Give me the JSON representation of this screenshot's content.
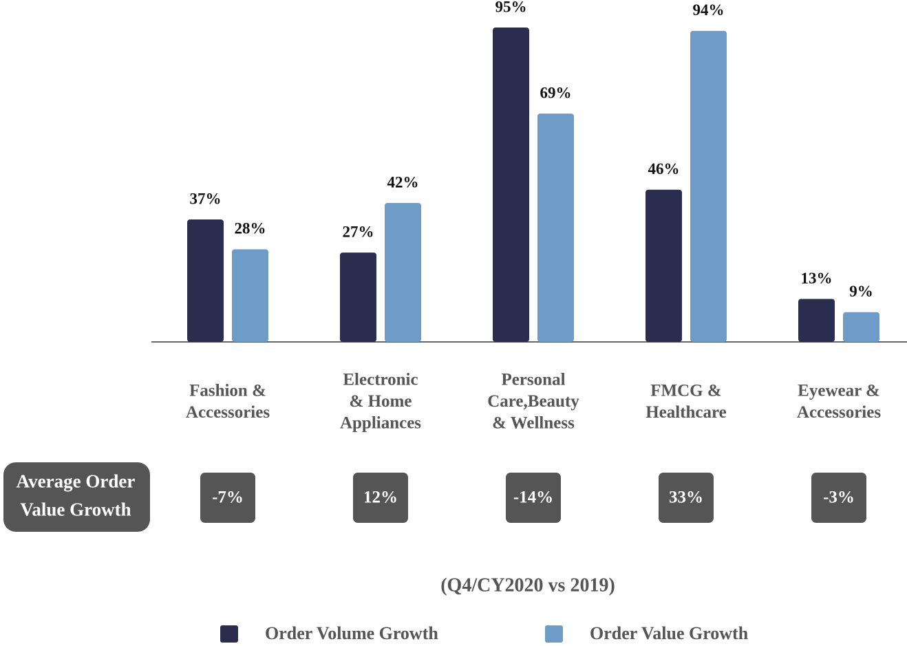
{
  "chart_data": {
    "type": "bar",
    "categories": [
      "Fashion &\nAccessories",
      "Electronic\n& Home\nAppliances",
      "Personal\nCare,Beauty\n& Wellness",
      "FMCG &\nHealthcare",
      "Eyewear &\nAccessories"
    ],
    "series": [
      {
        "name": "Order Volume Growth",
        "color": "#2a2d4d",
        "values": [
          37,
          27,
          95,
          46,
          13
        ],
        "value_labels": [
          "37%",
          "27%",
          "95%",
          "46%",
          "13%"
        ]
      },
      {
        "name": "Order Value Growth",
        "color": "#6d9cc9",
        "values": [
          28,
          42,
          69,
          94,
          9
        ],
        "value_labels": [
          "28%",
          "42%",
          "69%",
          "94%",
          "9%"
        ]
      }
    ],
    "ylim": [
      0,
      100
    ],
    "aov": {
      "label": "Average Order\nValue Growth",
      "values": [
        -7,
        12,
        -14,
        33,
        -3
      ],
      "value_labels": [
        "-7%",
        "12%",
        "-14%",
        "33%",
        "-3%"
      ],
      "color": "#555555"
    },
    "subtitle": "(Q4/CY2020 vs 2019)"
  }
}
